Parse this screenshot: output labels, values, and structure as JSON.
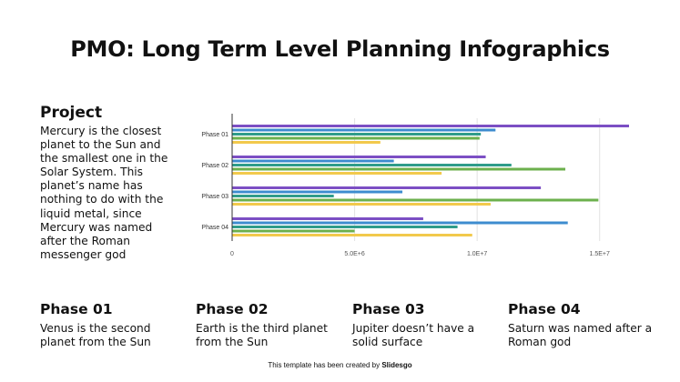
{
  "title": "PMO: Long Term Level Planning Infographics",
  "project": {
    "heading": "Project",
    "text": "Mercury is the closest planet to the Sun and the smallest one in the Solar System. This planet’s name has nothing to do with the liquid metal, since Mercury was named after the Roman messenger god"
  },
  "phases": [
    {
      "title": "Phase 01",
      "text": "Venus is the second planet from the Sun"
    },
    {
      "title": "Phase 02",
      "text": "Earth is the third planet from the Sun"
    },
    {
      "title": "Phase 03",
      "text": "Jupiter doesn’t have a solid surface"
    },
    {
      "title": "Phase 04",
      "text": "Saturn was named after a Roman god"
    }
  ],
  "footer": {
    "text": "This template has been created by ",
    "brand": "Slidesgo"
  },
  "chart_data": {
    "type": "bar",
    "orientation": "horizontal",
    "categories": [
      "Phase 01",
      "Phase 02",
      "Phase 03",
      "Phase 04"
    ],
    "series": [
      {
        "color": "#7c4fc4",
        "values": [
          16200000,
          10350000,
          12600000,
          7800000
        ]
      },
      {
        "color": "#3d8ccf",
        "values": [
          10750000,
          6600000,
          6950000,
          13700000
        ]
      },
      {
        "color": "#2f9c8a",
        "values": [
          10150000,
          11400000,
          4150000,
          9200000
        ]
      },
      {
        "color": "#6cb04d",
        "values": [
          10100000,
          13600000,
          14950000,
          5000000
        ]
      },
      {
        "color": "#f2c94c",
        "values": [
          6050000,
          8550000,
          10550000,
          9800000
        ]
      }
    ],
    "xlim": [
      0,
      16200000
    ],
    "xticks": [
      0,
      5000000,
      10000000,
      15000000
    ],
    "xtick_labels": [
      "0",
      "5.0E+6",
      "1.0E+7",
      "1.5E+7"
    ],
    "grid": "vertical",
    "legend": "none"
  }
}
